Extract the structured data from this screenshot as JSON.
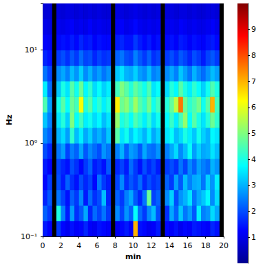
{
  "chart_data": {
    "type": "heatmap",
    "xlabel": "min",
    "ylabel": "Hz",
    "log": "y",
    "xlim": [
      0,
      20
    ],
    "xticks": [
      0,
      2,
      4,
      6,
      8,
      10,
      12,
      14,
      16,
      18,
      20
    ],
    "ylim": [
      0.1,
      31.6
    ],
    "yticks": [
      {
        "value": 0.1,
        "label": "10⁻¹"
      },
      {
        "value": 1,
        "label": "10⁰"
      },
      {
        "value": 10,
        "label": "10¹"
      }
    ],
    "x_edges": [
      0,
      0.5,
      1,
      1.5,
      2,
      2.5,
      3,
      3.5,
      4,
      4.5,
      5,
      5.5,
      6,
      6.5,
      7,
      7.5,
      8,
      8.5,
      9,
      9.5,
      10,
      10.5,
      11,
      11.5,
      12,
      12.5,
      13,
      13.5,
      14,
      14.5,
      15,
      15.5,
      16,
      16.5,
      17,
      17.5,
      18,
      18.5,
      19,
      19.5,
      20
    ],
    "y_edges": [
      0.1,
      0.147,
      0.215,
      0.316,
      0.464,
      0.681,
      1,
      1.47,
      2.15,
      3.16,
      4.64,
      6.81,
      10,
      14.7,
      21.5,
      31.6
    ],
    "cells": [
      [
        1.5,
        1.2,
        null,
        1.8,
        1.3,
        1.1,
        1.4,
        1.2,
        1.3,
        1.6,
        1.2,
        1.1,
        1.4,
        1.3,
        1.2,
        null,
        1.1,
        1.3,
        1.5,
        1.2,
        7.0,
        1.4,
        1.3,
        1.1,
        1.2,
        1.5,
        null,
        1.3,
        1.2,
        1.4,
        1.1,
        1.3,
        1.2,
        1.5,
        1.4,
        1.3,
        1.2,
        1.6,
        1.4,
        null
      ],
      [
        2.2,
        1.8,
        null,
        4.0,
        2.5,
        1.5,
        2.8,
        1.7,
        2.1,
        2.9,
        1.6,
        2.3,
        1.9,
        2.4,
        1.8,
        null,
        2.6,
        1.9,
        2.7,
        2.2,
        3.8,
        2.3,
        1.8,
        2.6,
        3.1,
        2.0,
        null,
        1.7,
        2.9,
        2.2,
        3.2,
        2.4,
        2.8,
        2.1,
        3.6,
        2.5,
        2.7,
        3.4,
        2.9,
        null
      ],
      [
        1.6,
        2.1,
        null,
        2.4,
        1.9,
        1.4,
        2.2,
        1.8,
        2.6,
        1.5,
        2.3,
        1.7,
        2.0,
        3.1,
        1.6,
        null,
        2.2,
        1.8,
        2.5,
        2.9,
        2.1,
        1.6,
        2.4,
        4.8,
        1.9,
        2.2,
        null,
        2.6,
        3.3,
        2.0,
        2.7,
        3.0,
        3.5,
        2.4,
        2.9,
        3.2,
        3.7,
        2.6,
        3.4,
        null
      ],
      [
        1.3,
        1.8,
        null,
        2.0,
        1.5,
        2.2,
        1.7,
        1.4,
        2.0,
        1.6,
        1.9,
        1.3,
        2.4,
        1.8,
        1.5,
        null,
        1.9,
        2.6,
        1.7,
        2.1,
        1.8,
        2.3,
        1.6,
        2.0,
        1.7,
        1.9,
        null,
        2.2,
        1.8,
        2.8,
        2.1,
        3.1,
        2.5,
        2.9,
        3.0,
        2.4,
        3.3,
        2.7,
        3.6,
        null
      ],
      [
        1.5,
        1.2,
        null,
        1.9,
        1.6,
        1.4,
        2.0,
        1.7,
        1.3,
        1.8,
        2.2,
        1.5,
        1.7,
        1.4,
        2.1,
        null,
        1.6,
        1.9,
        1.5,
        2.3,
        1.8,
        1.4,
        2.0,
        1.6,
        1.9,
        1.5,
        null,
        1.8,
        2.0,
        1.7,
        2.4,
        1.9,
        2.6,
        2.2,
        2.8,
        2.5,
        2.3,
        3.0,
        2.7,
        null
      ],
      [
        2.0,
        1.6,
        null,
        2.4,
        2.8,
        1.9,
        2.5,
        2.2,
        2.9,
        2.1,
        2.6,
        2.3,
        2.0,
        2.7,
        2.4,
        null,
        2.5,
        3.0,
        2.2,
        2.8,
        2.6,
        2.1,
        2.9,
        2.4,
        2.3,
        2.7,
        null,
        2.5,
        2.9,
        3.4,
        2.6,
        3.1,
        3.8,
        2.8,
        3.3,
        2.9,
        3.0,
        3.5,
        3.1,
        null
      ],
      [
        2.6,
        2.2,
        null,
        3.0,
        3.4,
        2.8,
        4.2,
        3.1,
        3.6,
        2.9,
        3.3,
        2.7,
        3.0,
        2.6,
        3.2,
        null,
        4.6,
        3.5,
        3.9,
        3.2,
        3.7,
        3.4,
        3.0,
        3.6,
        2.9,
        3.3,
        null,
        3.5,
        3.8,
        3.1,
        3.4,
        4.0,
        3.6,
        3.2,
        3.9,
        3.3,
        3.0,
        3.7,
        3.5,
        null
      ],
      [
        3.2,
        2.5,
        null,
        3.5,
        4.1,
        3.3,
        5.0,
        3.8,
        4.4,
        3.6,
        3.9,
        3.4,
        3.7,
        3.1,
        3.5,
        null,
        5.2,
        4.0,
        4.3,
        3.8,
        4.5,
        4.1,
        3.6,
        4.2,
        3.4,
        3.9,
        null,
        3.7,
        4.3,
        3.6,
        4.4,
        5.2,
        3.8,
        4.6,
        4.0,
        3.5,
        4.1,
        4.8,
        4.2,
        null
      ],
      [
        4.5,
        2.8,
        null,
        3.9,
        4.6,
        3.8,
        4.8,
        4.4,
        6.2,
        4.1,
        4.6,
        3.8,
        4.2,
        3.6,
        4.0,
        null,
        6.4,
        4.8,
        5.1,
        4.5,
        5.3,
        4.6,
        4.2,
        4.9,
        3.9,
        4.4,
        null,
        4.1,
        4.7,
        5.6,
        7.6,
        4.8,
        4.2,
        4.5,
        4.9,
        3.9,
        4.6,
        7.0,
        4.4,
        null
      ],
      [
        3.6,
        2.3,
        null,
        3.2,
        4.0,
        3.5,
        4.6,
        3.9,
        4.8,
        3.7,
        4.2,
        3.4,
        3.8,
        3.3,
        3.6,
        null,
        4.4,
        5.0,
        4.6,
        4.1,
        4.7,
        4.3,
        3.9,
        4.5,
        3.5,
        3.8,
        null,
        3.4,
        4.1,
        3.7,
        4.6,
        4.0,
        3.6,
        4.2,
        3.8,
        3.3,
        3.9,
        4.5,
        4.0,
        null
      ],
      [
        2.4,
        1.9,
        null,
        2.6,
        2.9,
        2.5,
        3.1,
        2.7,
        3.3,
        2.6,
        3.0,
        2.5,
        2.8,
        2.4,
        2.7,
        null,
        3.2,
        3.5,
        3.0,
        2.9,
        3.3,
        2.8,
        2.6,
        3.1,
        2.5,
        2.7,
        null,
        2.6,
        2.9,
        2.5,
        3.2,
        2.8,
        2.4,
        3.0,
        2.6,
        2.3,
        2.7,
        3.1,
        2.8,
        null
      ],
      [
        1.6,
        1.4,
        null,
        1.8,
        2.0,
        1.7,
        2.1,
        1.8,
        2.3,
        1.9,
        2.0,
        1.6,
        1.9,
        1.7,
        1.8,
        null,
        2.2,
        2.4,
        2.0,
        1.9,
        2.5,
        2.1,
        1.8,
        2.2,
        1.7,
        1.9,
        null,
        1.8,
        2.0,
        1.7,
        2.1,
        1.9,
        1.6,
        2.0,
        1.8,
        1.5,
        1.9,
        2.1,
        1.8,
        null
      ],
      [
        1.2,
        1.1,
        null,
        1.3,
        1.4,
        1.3,
        1.5,
        1.3,
        1.6,
        1.4,
        1.5,
        1.2,
        1.4,
        1.3,
        1.3,
        null,
        1.5,
        1.6,
        1.4,
        1.4,
        1.8,
        1.5,
        1.3,
        1.5,
        1.2,
        1.4,
        null,
        1.3,
        1.4,
        1.2,
        1.5,
        1.4,
        1.2,
        1.4,
        1.3,
        1.2,
        1.4,
        1.5,
        1.3,
        null
      ],
      [
        1.0,
        0.9,
        null,
        1.1,
        1.0,
        1.1,
        1.2,
        1.0,
        1.1,
        1.0,
        1.2,
        1.0,
        1.1,
        1.0,
        1.0,
        null,
        1.1,
        1.2,
        1.0,
        1.1,
        1.3,
        1.1,
        1.0,
        1.1,
        1.0,
        1.1,
        null,
        1.0,
        1.1,
        1.0,
        1.2,
        1.1,
        1.0,
        1.1,
        1.0,
        1.0,
        1.1,
        1.2,
        1.0,
        null
      ],
      [
        0.8,
        0.8,
        null,
        0.9,
        0.8,
        0.9,
        0.9,
        0.8,
        0.9,
        0.8,
        0.9,
        0.8,
        0.9,
        0.8,
        0.8,
        null,
        0.9,
        0.9,
        0.8,
        0.9,
        1.0,
        0.9,
        0.8,
        0.9,
        0.8,
        0.9,
        null,
        0.8,
        0.9,
        0.8,
        0.9,
        0.9,
        0.8,
        0.9,
        0.8,
        0.8,
        0.9,
        0.9,
        0.8,
        null
      ]
    ],
    "colorbar": {
      "lim": [
        0,
        10
      ],
      "ticks": [
        1,
        2,
        3,
        4,
        5,
        6,
        7,
        8,
        9
      ]
    }
  }
}
